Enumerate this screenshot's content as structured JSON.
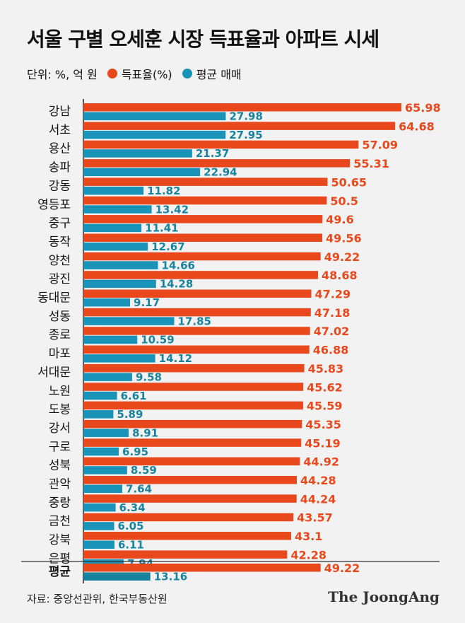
{
  "header": {
    "title": "서울 구별 오세훈 시장 득표율과 아파트 시세",
    "unit": "단위: %, 억 원"
  },
  "colors": {
    "vote": "#e8481c",
    "price": "#1a93b8",
    "avg_price": "#17839f"
  },
  "footer": {
    "source": "자료: 중앙선관위, 한국부동산원",
    "brand": "The JoongAng"
  },
  "chart_data": {
    "type": "bar",
    "orientation": "horizontal",
    "title": "서울 구별 오세훈 시장 득표율과 아파트 시세",
    "categories": [
      "강남",
      "서초",
      "용산",
      "송파",
      "강동",
      "영등포",
      "중구",
      "동작",
      "양천",
      "광진",
      "동대문",
      "성동",
      "종로",
      "마포",
      "서대문",
      "노원",
      "도봉",
      "강서",
      "구로",
      "성북",
      "관악",
      "중랑",
      "금천",
      "강북",
      "은평"
    ],
    "series": [
      {
        "name": "득표율(%)",
        "color": "#e8481c",
        "values": [
          65.98,
          64.68,
          57.09,
          55.31,
          50.65,
          50.5,
          49.6,
          49.56,
          49.22,
          48.68,
          47.29,
          47.18,
          47.02,
          46.88,
          45.83,
          45.62,
          45.59,
          45.35,
          45.19,
          44.92,
          44.28,
          44.24,
          43.57,
          43.1,
          42.28
        ]
      },
      {
        "name": "평균 매매",
        "color": "#1a93b8",
        "values": [
          27.98,
          27.95,
          21.37,
          22.94,
          11.82,
          13.42,
          11.41,
          12.67,
          14.66,
          14.28,
          9.17,
          17.85,
          10.59,
          14.12,
          9.58,
          6.61,
          5.89,
          8.91,
          6.95,
          8.59,
          7.64,
          6.34,
          6.05,
          6.11,
          7.94
        ]
      }
    ],
    "average": {
      "label": "평균",
      "vote": 49.22,
      "price": 13.16
    },
    "legend": "top-left"
  }
}
